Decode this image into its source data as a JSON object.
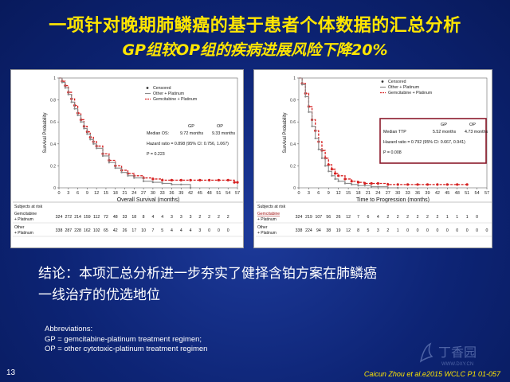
{
  "slide": {
    "title_line1": "一项针对晚期肺鳞癌的基于患者个体数据的汇总分析",
    "title_line2": "GP组较OP组的疾病进展风险下降20%",
    "conclusion_line1": "结论：本项汇总分析进一步夯实了健择含铂方案在肺鳞癌",
    "conclusion_line2": "一线治疗的优选地位",
    "abbr_heading": "Abbreviations:",
    "abbr_gp": "GP = gemcitabine-platinum treatment regimen;",
    "abbr_op": "OP = other cytotoxic-platinum treatment regimen",
    "page_number": "13",
    "citation": "Caicun Zhou et al.e2015 WCLC P1 01-057",
    "watermark": "丁香园",
    "watermark_url": "WWW.DXY.CN"
  },
  "colors": {
    "title": "#ffe600",
    "gp_series": "#d62020",
    "op_series": "#8a8a8a",
    "highlight_box": "#8b1a2b"
  },
  "chart_data": [
    {
      "type": "line",
      "ylabel": "Survival Probability",
      "xlabel": "Overall Survival (months)",
      "xlim": [
        0,
        57
      ],
      "ylim": [
        0,
        1
      ],
      "x_ticks": [
        "0",
        "3",
        "6",
        "9",
        "12",
        "15",
        "18",
        "21",
        "24",
        "27",
        "30",
        "33",
        "36",
        "39",
        "42",
        "45",
        "48",
        "51",
        "54",
        "57"
      ],
      "y_ticks": [
        "0",
        "0.2",
        "0.4",
        "0.6",
        "0.8",
        "1"
      ],
      "legend": [
        "Censored",
        "Other + Platinum",
        "Gemcitabine + Platinum"
      ],
      "stats_header": [
        "GP",
        "OP"
      ],
      "stats": [
        {
          "label": "Median OS:",
          "gp": "9.72 months",
          "op": "9.33 months"
        },
        {
          "label": "Hazard ratio = 0.898 (95% CI: 0.756, 1.067)"
        },
        {
          "label": "P = 0.223"
        }
      ],
      "series": [
        {
          "name": "Gemcitabine + Platinum",
          "x": [
            0,
            1,
            2,
            3,
            4,
            5,
            6,
            7,
            8,
            9,
            10,
            11,
            12,
            14,
            16,
            18,
            20,
            22,
            24,
            27,
            30,
            33,
            36,
            39,
            42,
            45,
            48,
            51,
            54,
            56,
            57
          ],
          "y": [
            1,
            0.97,
            0.93,
            0.87,
            0.81,
            0.75,
            0.68,
            0.62,
            0.56,
            0.51,
            0.46,
            0.42,
            0.38,
            0.31,
            0.25,
            0.2,
            0.16,
            0.13,
            0.11,
            0.09,
            0.08,
            0.07,
            0.07,
            0.07,
            0.07,
            0.07,
            0.07,
            0.07,
            0.07,
            0.05,
            0.05
          ]
        },
        {
          "name": "Other + Platinum",
          "x": [
            0,
            1,
            2,
            3,
            4,
            5,
            6,
            7,
            8,
            9,
            10,
            11,
            12,
            14,
            16,
            18,
            20,
            22,
            24,
            27,
            30,
            33,
            36,
            39,
            42
          ],
          "y": [
            1,
            0.96,
            0.91,
            0.85,
            0.78,
            0.72,
            0.66,
            0.6,
            0.54,
            0.49,
            0.44,
            0.4,
            0.36,
            0.29,
            0.23,
            0.18,
            0.14,
            0.11,
            0.09,
            0.06,
            0.05,
            0.04,
            0.03,
            0.03,
            0.0
          ]
        }
      ],
      "risk_table": {
        "heading": "Subjects at risk",
        "rows": [
          {
            "label": "Gemcitabine + Platinum",
            "values": [
              "324",
              "272",
              "214",
              "159",
              "112",
              "72",
              "48",
              "33",
              "18",
              "8",
              "4",
              "4",
              "3",
              "3",
              "3",
              "2",
              "2",
              "2",
              "2",
              ""
            ]
          },
          {
            "label": "Other + Platinum",
            "values": [
              "338",
              "287",
              "228",
              "162",
              "102",
              "65",
              "42",
              "26",
              "17",
              "10",
              "7",
              "5",
              "4",
              "4",
              "4",
              "3",
              "0",
              "0",
              "0",
              ""
            ]
          }
        ]
      }
    },
    {
      "type": "line",
      "ylabel": "Survival Probability",
      "xlabel": "Time to Progression (months)",
      "xlim": [
        0,
        57
      ],
      "ylim": [
        0,
        1
      ],
      "x_ticks": [
        "0",
        "3",
        "6",
        "9",
        "12",
        "15",
        "18",
        "21",
        "24",
        "27",
        "30",
        "33",
        "36",
        "39",
        "42",
        "45",
        "48",
        "51",
        "54",
        "57"
      ],
      "y_ticks": [
        "0",
        "0.2",
        "0.4",
        "0.6",
        "0.8",
        "1"
      ],
      "legend": [
        "Censored",
        "Other + Platinum",
        "Gemcitabine + Platinum"
      ],
      "stats_header": [
        "GP",
        "OP"
      ],
      "stats": [
        {
          "label": "Median TTP",
          "gp": "5.52 months",
          "op": "4.73 months"
        },
        {
          "label": "Hazard ratio = 0.792 (95% CI: 0.667, 0.941)"
        },
        {
          "label": "P = 0.008"
        }
      ],
      "series": [
        {
          "name": "Gemcitabine + Platinum",
          "x": [
            0,
            1,
            2,
            3,
            4,
            5,
            6,
            7,
            8,
            9,
            10,
            11,
            12,
            14,
            16,
            18,
            20,
            22,
            24,
            27,
            30,
            33,
            36,
            39,
            42,
            45,
            48,
            51
          ],
          "y": [
            1,
            0.95,
            0.86,
            0.74,
            0.62,
            0.52,
            0.42,
            0.34,
            0.27,
            0.21,
            0.17,
            0.13,
            0.11,
            0.08,
            0.06,
            0.05,
            0.04,
            0.04,
            0.04,
            0.03,
            0.03,
            0.03,
            0.03,
            0.03,
            0.03,
            0.03,
            0.03,
            0.03
          ]
        },
        {
          "name": "Other + Platinum",
          "x": [
            0,
            1,
            2,
            3,
            4,
            5,
            6,
            7,
            8,
            9,
            10,
            11,
            12,
            14,
            16,
            18,
            20,
            22,
            24,
            27,
            30
          ],
          "y": [
            1,
            0.94,
            0.83,
            0.69,
            0.56,
            0.45,
            0.35,
            0.27,
            0.2,
            0.15,
            0.11,
            0.08,
            0.06,
            0.04,
            0.03,
            0.02,
            0.02,
            0.01,
            0.01,
            0.0,
            0.0
          ]
        }
      ],
      "risk_table": {
        "heading": "Subjects at risk",
        "rows": [
          {
            "label": "Gemcitabine + Platinum",
            "values": [
              "324",
              "219",
              "107",
              "56",
              "26",
              "12",
              "7",
              "6",
              "4",
              "2",
              "2",
              "2",
              "2",
              "2",
              "2",
              "1",
              "1",
              "1",
              "0",
              ""
            ]
          },
          {
            "label": "Other + Platinum",
            "values": [
              "338",
              "224",
              "94",
              "38",
              "19",
              "12",
              "8",
              "5",
              "3",
              "2",
              "1",
              "0",
              "0",
              "0",
              "0",
              "0",
              "0",
              "0",
              "0",
              "0"
            ]
          }
        ]
      }
    }
  ]
}
